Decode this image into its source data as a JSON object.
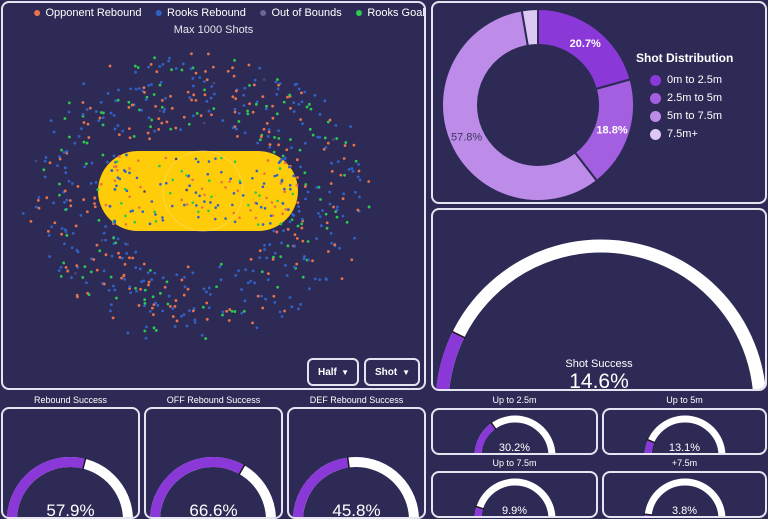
{
  "shot_map": {
    "legend": [
      {
        "label": "Opponent Rebound",
        "color": "#e8734a"
      },
      {
        "label": "Rooks Rebound",
        "color": "#2f62c4"
      },
      {
        "label": "Out of Bounds",
        "color": "#4a4676"
      },
      {
        "label": "Rooks Goal",
        "color": "#2bc94f"
      }
    ],
    "subtitle": "Max 1000 Shots",
    "zone_color": "#ffcc0a",
    "dropdown_half": "Half",
    "dropdown_shot": "Shot"
  },
  "shot_distribution": {
    "title": "Shot Distribution",
    "slices": [
      {
        "label": "0m to 2.5m",
        "value": 20.7,
        "value_label": "20.7%",
        "color": "#8a38d8"
      },
      {
        "label": "2.5m to 5m",
        "value": 18.8,
        "value_label": "18.8%",
        "color": "#a35fe0"
      },
      {
        "label": "5m to 7.5m",
        "value": 57.8,
        "value_label": "57.8%",
        "color": "#bd8ce8"
      },
      {
        "label": "7.5m+",
        "value": 2.7,
        "value_label": "",
        "color": "#dcc8f2"
      }
    ]
  },
  "shot_success": {
    "title": "Shot Success",
    "value": 14.6,
    "value_label": "14.6%"
  },
  "rebound_gauges": [
    {
      "title": "Rebound Success",
      "value": 57.9,
      "value_label": "57.9%"
    },
    {
      "title": "OFF Rebound Success",
      "value": 66.6,
      "value_label": "66.6%"
    },
    {
      "title": "DEF Rebound Success",
      "value": 45.8,
      "value_label": "45.8%"
    }
  ],
  "distance_gauges": [
    {
      "title": "Up to 2.5m",
      "value": 30.2,
      "value_label": "30.2%"
    },
    {
      "title": "Up to 5m",
      "value": 13.1,
      "value_label": "13.1%"
    },
    {
      "title": "Up to 7.5m",
      "value": 9.9,
      "value_label": "9.9%"
    },
    {
      "title": "+7.5m",
      "value": 3.8,
      "value_label": "3.8%"
    }
  ],
  "gauge_colors": {
    "fill": "#8a38d8",
    "track": "#ffffff",
    "marker": "#1a1a1a"
  }
}
